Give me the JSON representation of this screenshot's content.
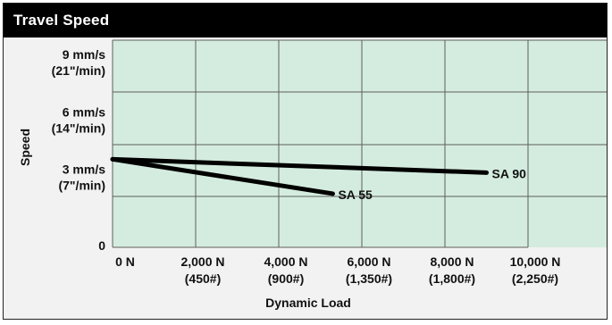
{
  "chart_data": {
    "type": "line",
    "title": "Travel Speed",
    "xlabel": "Dynamic Load",
    "ylabel": "Speed",
    "xlim": [
      0,
      10000
    ],
    "ylim": [
      0,
      9
    ],
    "x_ticks": [
      {
        "value": 0,
        "label": "0 N",
        "sublabel": ""
      },
      {
        "value": 2000,
        "label": "2,000 N",
        "sublabel": "(450#)"
      },
      {
        "value": 4000,
        "label": "4,000 N",
        "sublabel": "(900#)"
      },
      {
        "value": 6000,
        "label": "6,000 N",
        "sublabel": "(1,350#)"
      },
      {
        "value": 8000,
        "label": "8,000 N",
        "sublabel": "(1,800#)"
      },
      {
        "value": 10000,
        "label": "10,000 N",
        "sublabel": "(2,250#)"
      }
    ],
    "y_ticks": [
      {
        "value": 0,
        "label": "0",
        "sublabel": ""
      },
      {
        "value": 3,
        "label": "3 mm/s",
        "sublabel": "(7\"/min)"
      },
      {
        "value": 6,
        "label": "6 mm/s",
        "sublabel": "(14\"/min)"
      },
      {
        "value": 9,
        "label": "9 mm/s",
        "sublabel": "(21\"/min)"
      }
    ],
    "grid": true,
    "series": [
      {
        "name": "SA 90",
        "x": [
          0,
          9000
        ],
        "y": [
          4.6,
          3.9
        ]
      },
      {
        "name": "SA 55",
        "x": [
          0,
          5300
        ],
        "y": [
          4.6,
          2.8
        ]
      }
    ],
    "colors": {
      "plot_background": "#d4ecdf",
      "grid": "#5e5e5e",
      "line": "#000000"
    }
  }
}
